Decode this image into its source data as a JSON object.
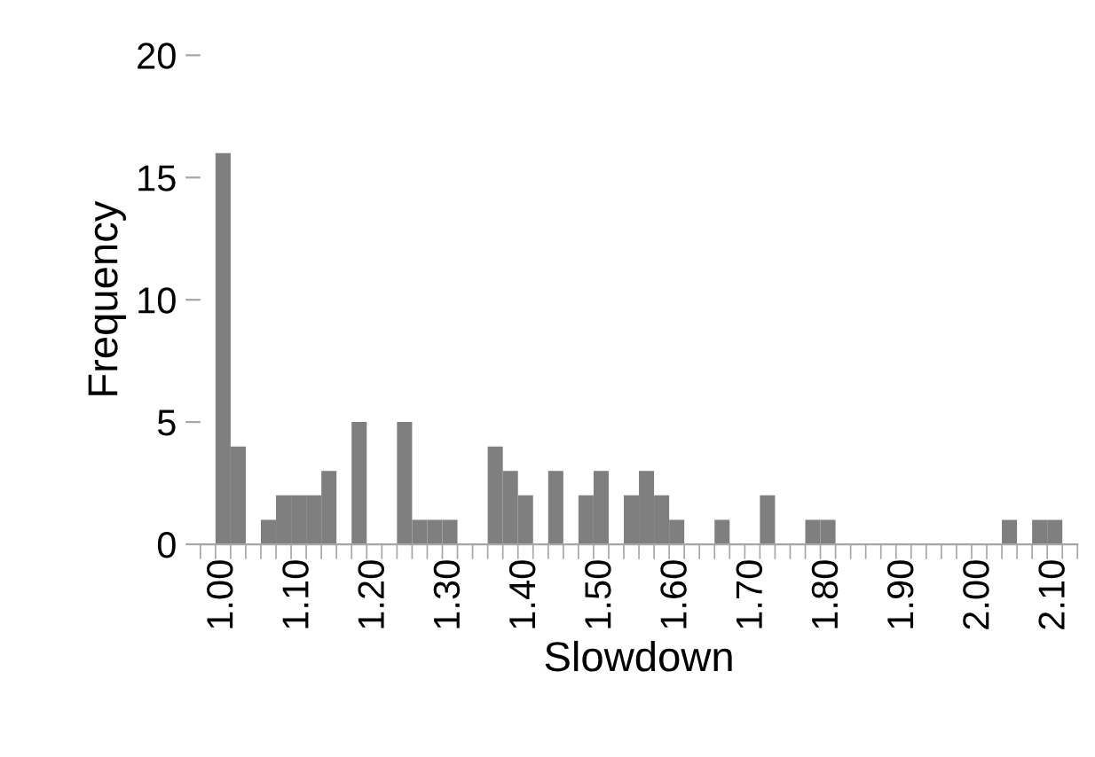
{
  "chart_data": {
    "type": "bar",
    "xlabel": "Slowdown",
    "ylabel": "Frequency",
    "categories": [
      "1.00",
      null,
      null,
      null,
      null,
      "1.10",
      null,
      null,
      null,
      null,
      "1.20",
      null,
      null,
      null,
      null,
      "1.30",
      null,
      null,
      null,
      null,
      "1.40",
      null,
      null,
      null,
      null,
      "1.50",
      null,
      null,
      null,
      null,
      "1.60",
      null,
      null,
      null,
      null,
      "1.70",
      null,
      null,
      null,
      null,
      "1.80",
      null,
      null,
      null,
      null,
      "1.90",
      null,
      null,
      null,
      null,
      "2.00",
      null,
      null,
      null,
      null,
      "2.10",
      null
    ],
    "values": [
      16,
      4,
      0,
      1,
      2,
      2,
      2,
      3,
      0,
      5,
      0,
      0,
      5,
      1,
      1,
      1,
      0,
      0,
      4,
      3,
      2,
      0,
      3,
      0,
      2,
      3,
      0,
      2,
      3,
      2,
      1,
      0,
      0,
      1,
      0,
      0,
      2,
      0,
      0,
      1,
      1,
      0,
      0,
      0,
      0,
      0,
      0,
      0,
      0,
      0,
      0,
      0,
      1,
      0,
      1,
      1,
      0
    ],
    "color": "#7f7f7f",
    "ylim": [
      0,
      20
    ],
    "yticks": [
      0,
      5,
      10,
      15,
      20
    ],
    "grid": false,
    "legend": false
  }
}
